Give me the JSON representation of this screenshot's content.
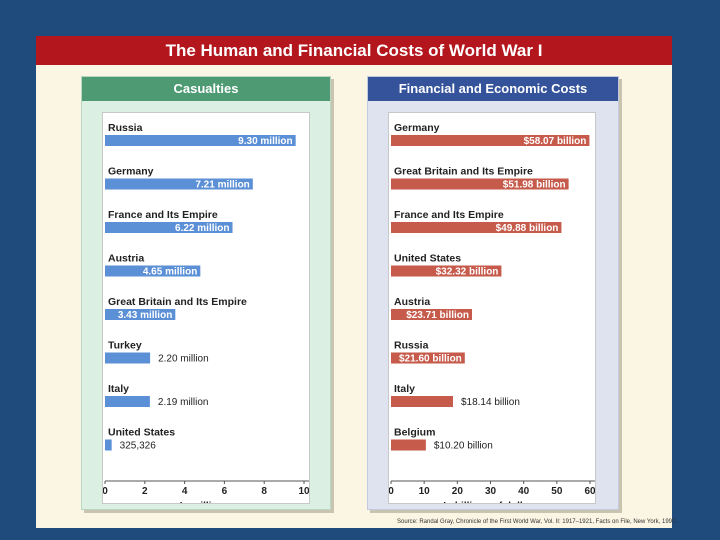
{
  "title": "The Human and Financial Costs of World War I",
  "source": "Source: Randal Gray, Chronicle of the First World War, Vol. II: 1917–1921, Facts on File, New York, 1991.",
  "colors": {
    "background": "#1f4a7c",
    "title_bar": "#b3171d",
    "casualty_bar": "#5b8fd6",
    "cost_bar": "#c65a4b"
  },
  "chart_data": [
    {
      "type": "bar",
      "title": "Casualties",
      "xlabel": "In millions",
      "xlim": [
        0,
        10
      ],
      "ticks": [
        "0",
        "2",
        "4",
        "6",
        "8",
        "10"
      ],
      "categories": [
        "Russia",
        "Germany",
        "France and Its Empire",
        "Austria",
        "Great Britain and Its Empire",
        "Turkey",
        "Italy",
        "United States"
      ],
      "values": [
        9.3,
        7.21,
        6.22,
        4.65,
        3.43,
        2.2,
        2.19,
        0.325326
      ],
      "labels": [
        "9.30 million",
        "7.21 million",
        "6.22 million",
        "4.65 million",
        "3.43 million",
        "2.20 million",
        "2.19 million",
        "325,326"
      ]
    },
    {
      "type": "bar",
      "title": "Financial and Economic Costs",
      "xlabel": "In billions of dollars",
      "xlim": [
        0,
        60
      ],
      "ticks": [
        "0",
        "10",
        "20",
        "30",
        "40",
        "50",
        "60"
      ],
      "categories": [
        "Germany",
        "Great Britain and Its Empire",
        "France and Its Empire",
        "United States",
        "Austria",
        "Russia",
        "Italy",
        "Belgium"
      ],
      "values": [
        58.07,
        51.98,
        49.88,
        32.32,
        23.71,
        21.6,
        18.14,
        10.2
      ],
      "labels": [
        "$58.07 billion",
        "$51.98 billion",
        "$49.88 billion",
        "$32.32 billion",
        "$23.71 billion",
        "$21.60 billion",
        "$18.14 billion",
        "$10.20 billion"
      ]
    }
  ]
}
